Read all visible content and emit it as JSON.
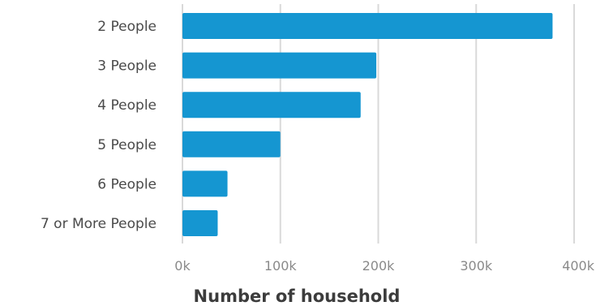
{
  "chart_data": {
    "type": "bar",
    "orientation": "horizontal",
    "categories": [
      "2 People",
      "3 People",
      "4 People",
      "5 People",
      "6 People",
      "7 or More People"
    ],
    "values": [
      378000,
      198000,
      182000,
      100000,
      46000,
      36000
    ],
    "xlabel": "Number of household",
    "ylabel": "",
    "xlim": [
      0,
      400000
    ],
    "xticks": [
      "0k",
      "100k",
      "200k",
      "300k",
      "400k"
    ],
    "grid": true,
    "bar_color": "#1596d1"
  }
}
